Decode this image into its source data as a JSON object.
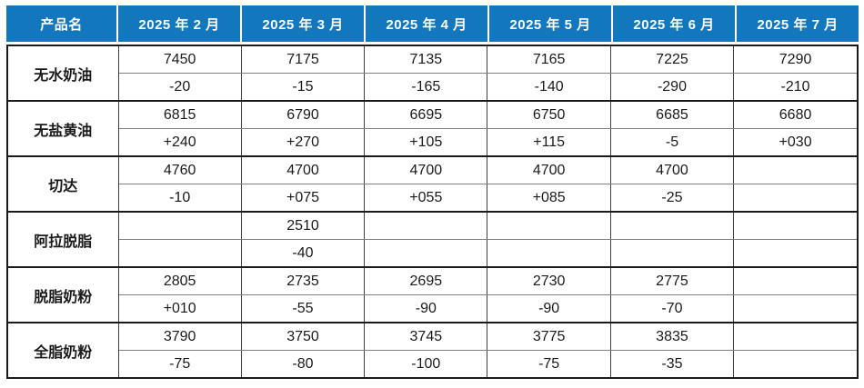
{
  "colors": {
    "header_bg": "#1277BD",
    "header_text": "#FFFFFF",
    "increase_red": "#DE3B3F",
    "decrease_green": "#2EC46F",
    "grid_line": "#3F3F3F",
    "group_divider": "#1A1A1A",
    "subrow_divider": "#7F7F7F"
  },
  "table": {
    "product_header": "产品名",
    "months": [
      "2025 年 2 月",
      "2025 年 3 月",
      "2025 年 4 月",
      "2025 年 5 月",
      "2025 年 6 月",
      "2025 年 7 月"
    ],
    "rows": [
      {
        "product": "无水奶油",
        "values": [
          "7450",
          "7175",
          "7135",
          "7165",
          "7225",
          "7290"
        ],
        "changes": [
          "-20",
          "-15",
          "-165",
          "-140",
          "-290",
          "-210"
        ]
      },
      {
        "product": "无盐黄油",
        "values": [
          "6815",
          "6790",
          "6695",
          "6750",
          "6685",
          "6680"
        ],
        "changes": [
          "+240",
          "+270",
          "+105",
          "+115",
          "-5",
          "+030"
        ]
      },
      {
        "product": "切达",
        "values": [
          "4760",
          "4700",
          "4700",
          "4700",
          "4700",
          ""
        ],
        "changes": [
          "-10",
          "+075",
          "+055",
          "+085",
          "-25",
          ""
        ]
      },
      {
        "product": "阿拉脱脂",
        "values": [
          "",
          "2510",
          "",
          "",
          "",
          ""
        ],
        "changes": [
          "",
          "-40",
          "",
          "",
          "",
          ""
        ]
      },
      {
        "product": "脱脂奶粉",
        "values": [
          "2805",
          "2735",
          "2695",
          "2730",
          "2775",
          ""
        ],
        "changes": [
          "+010",
          "-55",
          "-90",
          "-90",
          "-70",
          ""
        ]
      },
      {
        "product": "全脂奶粉",
        "values": [
          "3790",
          "3750",
          "3745",
          "3775",
          "3835",
          ""
        ],
        "changes": [
          "-75",
          "-80",
          "-100",
          "-75",
          "-35",
          ""
        ]
      }
    ]
  }
}
